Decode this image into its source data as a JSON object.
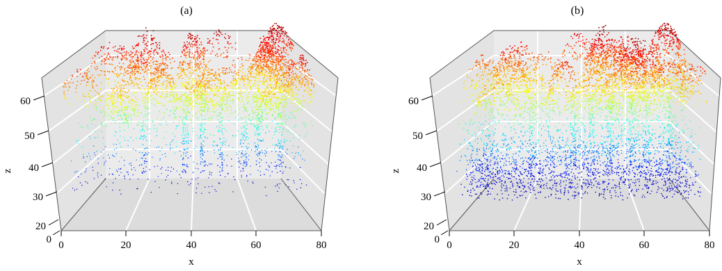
{
  "chart_data": [
    {
      "type": "scatter",
      "subtype": "3d-point-cloud",
      "title": "(a)",
      "xlabel": "x",
      "zlabel": "z",
      "xlim": [
        0,
        80
      ],
      "zlim": [
        0,
        65
      ],
      "x_ticks": [
        "0",
        "20",
        "40",
        "60",
        "80"
      ],
      "z_ticks": [
        "0",
        "20",
        "30",
        "40",
        "50",
        "60"
      ],
      "colormap": "jet",
      "color_variable": "z",
      "grid": true,
      "box": true,
      "pane_color": "#e8e8e8",
      "canopy_z_range": [
        48,
        64
      ],
      "understory_density": "sparse"
    },
    {
      "type": "scatter",
      "subtype": "3d-point-cloud",
      "title": "(b)",
      "xlabel": "x",
      "zlabel": "z",
      "xlim": [
        0,
        80
      ],
      "zlim": [
        0,
        65
      ],
      "x_ticks": [
        "0",
        "20",
        "40",
        "60",
        "80"
      ],
      "z_ticks": [
        "0",
        "20",
        "30",
        "40",
        "50",
        "60"
      ],
      "colormap": "jet",
      "color_variable": "z",
      "grid": true,
      "box": true,
      "pane_color": "#e8e8e8",
      "canopy_z_range": [
        48,
        64
      ],
      "understory_density": "dense"
    }
  ]
}
